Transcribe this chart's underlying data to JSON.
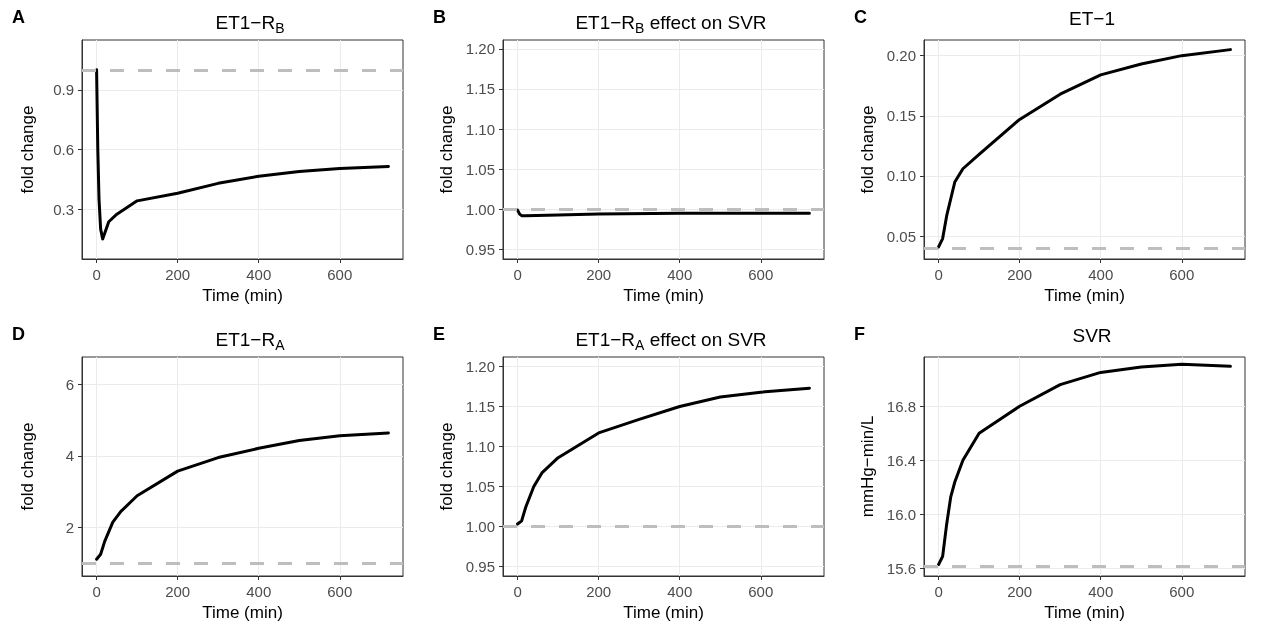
{
  "chart_data": [
    {
      "type": "line",
      "title": "ET1−R$_{B}$",
      "annotations": [
        "A"
      ],
      "xlabel": "Time (min)",
      "ylabel": "fold change",
      "xlim": [
        -36,
        756
      ],
      "xticks": [
        0,
        200,
        400,
        600
      ],
      "ylim": [
        0.05,
        1.15
      ],
      "yticks": [
        0.3,
        0.6,
        0.9
      ],
      "grid": true,
      "line_style": "solid",
      "marker": "none",
      "series": [
        {
          "color": "#000000",
          "x": [
            0,
            3,
            6,
            10,
            15,
            30,
            50,
            100,
            200,
            300,
            400,
            500,
            600,
            720
          ],
          "values": [
            1.0,
            0.6,
            0.35,
            0.2,
            0.151,
            0.237,
            0.275,
            0.342,
            0.38,
            0.43,
            0.466,
            0.49,
            0.505,
            0.515
          ]
        }
      ],
      "ref_lines": [
        {
          "axis": "y",
          "value": 1.0,
          "color": "#bebebe",
          "line_style": "dashed"
        }
      ]
    },
    {
      "type": "line",
      "title": "ET1−R$_{B}$ effect on SVR",
      "annotations": [
        "B"
      ],
      "xlabel": "Time (min)",
      "ylabel": "fold change",
      "xlim": [
        -36,
        756
      ],
      "xticks": [
        0,
        200,
        400,
        600
      ],
      "ylim": [
        0.938,
        1.211
      ],
      "yticks": [
        0.95,
        {
          "value": 1.0,
          "label": "1.00"
        },
        1.05,
        {
          "value": 1.1,
          "label": "1.10"
        },
        1.15,
        {
          "value": 1.2,
          "label": "1.20"
        }
      ],
      "grid": true,
      "line_style": "solid",
      "marker": "none",
      "series": [
        {
          "color": "#000000",
          "x": [
            0,
            5,
            10,
            20,
            100,
            200,
            400,
            600,
            720
          ],
          "values": [
            0.999,
            0.994,
            0.992,
            0.992,
            0.993,
            0.994,
            0.995,
            0.995,
            0.995
          ]
        }
      ],
      "ref_lines": [
        {
          "axis": "y",
          "value": 1.0,
          "color": "#bebebe",
          "line_style": "dashed"
        }
      ]
    },
    {
      "type": "line",
      "title": "ET−1",
      "annotations": [
        "C"
      ],
      "xlabel": "Time (min)",
      "ylabel": "fold change",
      "xlim": [
        -36,
        756
      ],
      "xticks": [
        0,
        200,
        400,
        600
      ],
      "ylim": [
        0.031,
        0.213
      ],
      "yticks": [
        0.05,
        {
          "value": 0.1,
          "label": "0.10"
        },
        0.15,
        {
          "value": 0.2,
          "label": "0.20"
        }
      ],
      "grid": true,
      "line_style": "solid",
      "marker": "none",
      "series": [
        {
          "color": "#000000",
          "x": [
            0,
            10,
            20,
            40,
            60,
            100,
            200,
            300,
            400,
            500,
            600,
            720
          ],
          "values": [
            0.041,
            0.048,
            0.067,
            0.095,
            0.106,
            0.118,
            0.147,
            0.168,
            0.184,
            0.193,
            0.2,
            0.205
          ]
        }
      ],
      "ref_lines": [
        {
          "axis": "y",
          "value": 0.04,
          "color": "#bebebe",
          "line_style": "dashed"
        }
      ]
    },
    {
      "type": "line",
      "title": "ET1−R$_{A}$",
      "annotations": [
        "D"
      ],
      "xlabel": "Time (min)",
      "ylabel": "fold change",
      "xlim": [
        -36,
        756
      ],
      "xticks": [
        0,
        200,
        400,
        600
      ],
      "ylim": [
        0.63,
        6.77
      ],
      "yticks": [
        2,
        4,
        6
      ],
      "grid": true,
      "line_style": "solid",
      "marker": "none",
      "series": [
        {
          "color": "#000000",
          "x": [
            0,
            10,
            20,
            40,
            60,
            100,
            200,
            300,
            400,
            500,
            600,
            720
          ],
          "values": [
            1.1,
            1.24,
            1.6,
            2.14,
            2.44,
            2.88,
            3.57,
            3.95,
            4.21,
            4.43,
            4.56,
            4.64
          ]
        }
      ],
      "ref_lines": [
        {
          "axis": "y",
          "value": 1.0,
          "color": "#bebebe",
          "line_style": "dashed"
        }
      ]
    },
    {
      "type": "line",
      "title": "ET1−R$_{A}$ effect on SVR",
      "annotations": [
        "E"
      ],
      "xlabel": "Time (min)",
      "ylabel": "fold change",
      "xlim": [
        -36,
        756
      ],
      "xticks": [
        0,
        200,
        400,
        600
      ],
      "ylim": [
        0.938,
        1.212
      ],
      "yticks": [
        0.95,
        {
          "value": 1.0,
          "label": "1.00"
        },
        1.05,
        {
          "value": 1.1,
          "label": "1.10"
        },
        1.15,
        {
          "value": 1.2,
          "label": "1.20"
        }
      ],
      "grid": true,
      "line_style": "solid",
      "marker": "none",
      "series": [
        {
          "color": "#000000",
          "x": [
            0,
            10,
            20,
            40,
            60,
            100,
            200,
            300,
            400,
            500,
            600,
            720
          ],
          "values": [
            1.003,
            1.007,
            1.024,
            1.05,
            1.067,
            1.086,
            1.117,
            1.134,
            1.15,
            1.162,
            1.168,
            1.173
          ]
        }
      ],
      "ref_lines": [
        {
          "axis": "y",
          "value": 1.0,
          "color": "#bebebe",
          "line_style": "dashed"
        }
      ]
    },
    {
      "type": "line",
      "title": "SVR",
      "annotations": [
        "F"
      ],
      "xlabel": "Time (min)",
      "ylabel": "mmHg−min/L",
      "xlim": [
        -36,
        756
      ],
      "xticks": [
        0,
        200,
        400,
        600
      ],
      "ylim": [
        15.545,
        17.164
      ],
      "yticks": [
        15.6,
        {
          "value": 16.0,
          "label": "16.0"
        },
        16.4,
        16.8
      ],
      "grid": true,
      "line_style": "solid",
      "marker": "none",
      "series": [
        {
          "color": "#000000",
          "x": [
            0,
            10,
            20,
            30,
            40,
            60,
            100,
            150,
            200,
            300,
            400,
            500,
            600,
            720
          ],
          "values": [
            15.63,
            15.69,
            15.93,
            16.13,
            16.24,
            16.4,
            16.6,
            16.7,
            16.8,
            16.96,
            17.05,
            17.09,
            17.11,
            17.095
          ]
        }
      ],
      "ref_lines": [
        {
          "axis": "y",
          "value": 15.62,
          "color": "#bebebe",
          "line_style": "dashed"
        }
      ]
    }
  ]
}
